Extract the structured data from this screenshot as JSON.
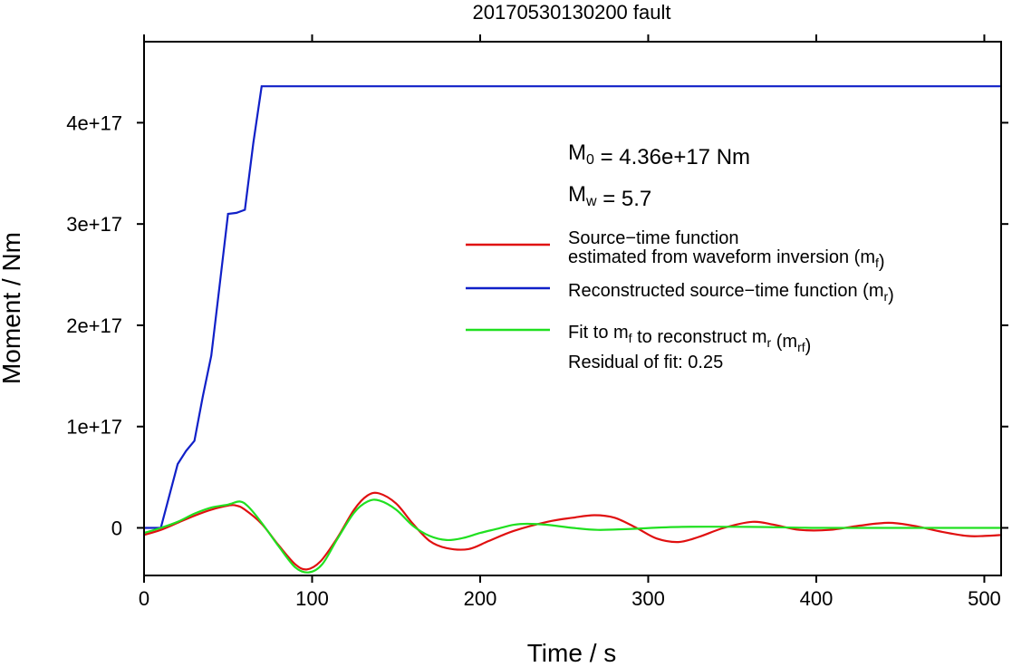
{
  "chart_data": {
    "type": "line",
    "title": "20170530130200 fault",
    "xlabel": "Time / s",
    "ylabel": "Moment / Nm",
    "xlim": [
      0,
      510
    ],
    "ylim": [
      -4.7e+16,
      4.8e+17
    ],
    "xticks": [
      0,
      100,
      200,
      300,
      400,
      500
    ],
    "xtick_labels": [
      "0",
      "100",
      "200",
      "300",
      "400",
      "500"
    ],
    "yticks": [
      0,
      1e+17,
      2e+17,
      3e+17,
      4e+17
    ],
    "ytick_labels": [
      "0",
      "1e+17",
      "2e+17",
      "3e+17",
      "4e+17"
    ],
    "grid": false,
    "legend_position": "right",
    "annotations": {
      "m0": {
        "symbol": "M",
        "sub": "0",
        "text": " = 4.36e+17 Nm"
      },
      "mw": {
        "symbol": "M",
        "sub": "w",
        "text": " = 5.7"
      },
      "residual": "Residual of fit: 0.25"
    },
    "legend": [
      {
        "color": "#e01010",
        "lines": [
          [
            {
              "t": "Source−time function"
            }
          ],
          [
            {
              "t": "estimated from waveform inversion (m"
            },
            {
              "t": "f",
              "sub": true
            },
            {
              "t": ")"
            }
          ]
        ]
      },
      {
        "color": "#1020c8",
        "lines": [
          [
            {
              "t": "Reconstructed source−time function (m"
            },
            {
              "t": "r",
              "sub": true
            },
            {
              "t": ")"
            }
          ]
        ]
      },
      {
        "color": "#20e020",
        "lines": [
          [
            {
              "t": "Fit to m"
            },
            {
              "t": "f",
              "sub": true
            },
            {
              "t": " to reconstruct m"
            },
            {
              "t": "r",
              "sub": true
            },
            {
              "t": " (m"
            },
            {
              "t": "rf",
              "sub": true
            },
            {
              "t": ")"
            }
          ]
        ]
      }
    ],
    "series": [
      {
        "key": "mr",
        "color": "#1020c8",
        "x": [
          0,
          10,
          20,
          25,
          30,
          35,
          40,
          45,
          50,
          55,
          60,
          65,
          70,
          510
        ],
        "y": [
          0,
          0,
          6.3e+16,
          7.6e+16,
          8.6e+16,
          1.3e+17,
          1.7e+17,
          2.4e+17,
          3.1e+17,
          3.11e+17,
          3.14e+17,
          3.8e+17,
          4.36e+17,
          4.36e+17
        ]
      },
      {
        "key": "mf",
        "color": "#e01010",
        "x": [
          0,
          10,
          20,
          30,
          40,
          50,
          55,
          60,
          70,
          80,
          90,
          97,
          105,
          115,
          125,
          133,
          140,
          150,
          160,
          170,
          180,
          193,
          205,
          220,
          240,
          255,
          268,
          280,
          293,
          305,
          318,
          330,
          345,
          362,
          375,
          390,
          408,
          425,
          443,
          458,
          475,
          490,
          500,
          510
        ],
        "y": [
          -7000000000000000.0,
          -2000000000000000.0,
          5000000000000000.0,
          1.2e+16,
          1.8e+16,
          2.2e+16,
          2.2e+16,
          1.8e+16,
          4000000000000000.0,
          -1.7e+16,
          -3.6e+16,
          -4.1e+16,
          -3.3e+16,
          -1e+16,
          1.8e+16,
          3.2e+16,
          3.4e+16,
          2.4e+16,
          4000000000000000.0,
          -1.3e+16,
          -2e+16,
          -2.1e+16,
          -1.3e+16,
          -3000000000000000.0,
          6000000000000000.0,
          1e+16,
          1.25e+16,
          1e+16,
          0,
          -1.05e+16,
          -1.4e+16,
          -9000000000000000.0,
          0,
          6000000000000000.0,
          3000000000000000.0,
          -2000000000000000.0,
          -2000000000000000.0,
          2000000000000000.0,
          5000000000000000.0,
          2000000000000000.0,
          -4000000000000000.0,
          -8000000000000000.0,
          -8000000000000000.0,
          -7000000000000000.0
        ]
      },
      {
        "key": "mrf",
        "color": "#20e020",
        "x": [
          0,
          10,
          20,
          30,
          40,
          50,
          57,
          62,
          70,
          80,
          90,
          98,
          106,
          115,
          125,
          133,
          140,
          150,
          160,
          170,
          180,
          190,
          200,
          210,
          220,
          228,
          240,
          255,
          270,
          290,
          320,
          360,
          400,
          450,
          510
        ],
        "y": [
          -5000000000000000.0,
          0,
          6000000000000000.0,
          1.4e+16,
          2e+16,
          2.3e+16,
          2.6e+16,
          2.1e+16,
          5000000000000000.0,
          -1.8e+16,
          -3.9e+16,
          -4.4e+16,
          -3.6e+16,
          -1.1e+16,
          1.5e+16,
          2.6e+16,
          2.7e+16,
          1.8e+16,
          2000000000000000.0,
          -8000000000000000.0,
          -1.2e+16,
          -1e+16,
          -5000000000000000.0,
          -1000000000000000.0,
          3000000000000000.0,
          4000000000000000.0,
          3000000000000000.0,
          0,
          -2000000000000000.0,
          -1000000000000000.0,
          1000000000000000.0,
          1000000000000000.0,
          0,
          0,
          0
        ]
      }
    ]
  }
}
